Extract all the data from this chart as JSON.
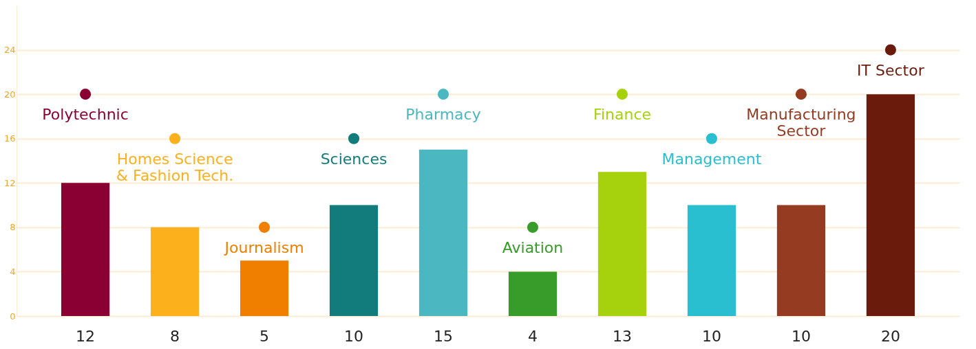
{
  "chart_data": {
    "type": "bar",
    "categories": [
      "Polytechnic",
      "Homes Science\n& Fashion Tech.",
      "Journalism",
      "Sciences",
      "Pharmacy",
      "Aviation",
      "Finance",
      "Management",
      "Manufacturing\nSector",
      "IT Sector"
    ],
    "series": [
      {
        "values": [
          12,
          8,
          5,
          10,
          15,
          4,
          13,
          10,
          10,
          20
        ],
        "value_labels": [
          "12",
          "8",
          "5",
          "10",
          "15",
          "4",
          "13",
          "10",
          "10",
          "20"
        ],
        "colors": [
          "#8b0033",
          "#fbb01c",
          "#f07f00",
          "#127b7c",
          "#4bb8c1",
          "#379c2a",
          "#a5d10d",
          "#29bfd0",
          "#953b21",
          "#6a1b0c"
        ]
      },
      {
        "type": "scatter",
        "values": [
          20,
          16,
          8,
          16,
          20,
          8,
          20,
          16,
          20,
          24
        ],
        "colors": [
          "#8b0033",
          "#fbb01c",
          "#f07f00",
          "#127b7c",
          "#4bb8c1",
          "#379c2a",
          "#a5d10d",
          "#29bfd0",
          "#953b21",
          "#6a1b0c"
        ]
      }
    ],
    "ylim": [
      0,
      28
    ],
    "yticks": [
      0,
      4,
      8,
      12,
      16,
      20,
      24
    ],
    "grid": "y",
    "marker": "circle"
  }
}
